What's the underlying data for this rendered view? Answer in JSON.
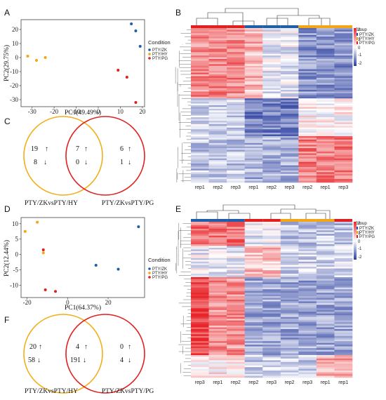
{
  "panels": {
    "A": "A",
    "B": "B",
    "C": "C",
    "D": "D",
    "E": "E",
    "F": "F"
  },
  "pca_legend_title": "Condition",
  "groups": [
    "PTY/ZK",
    "PTY/HY",
    "PTY/PG"
  ],
  "group_colors": {
    "PTY/ZK": "#1f5fa8",
    "PTY/HY": "#f2a515",
    "PTY/PG": "#e0201e"
  },
  "heatmap_legend_title": "Group",
  "heatmap_scale": {
    "ticks": [
      "2",
      "1",
      "0",
      "-1",
      "-2"
    ],
    "colors": [
      "#2b3fa0",
      "#ffffff",
      "#e8262a"
    ]
  },
  "chart_data": [
    {
      "id": "A",
      "type": "scatter",
      "xlabel": "PC1(49.49%)",
      "ylabel": "PC2(29.75%)",
      "xlim": [
        -35,
        21
      ],
      "ylim": [
        -35,
        27
      ],
      "xticks": [
        -30,
        -20,
        -10,
        0,
        10,
        20
      ],
      "yticks": [
        20,
        10,
        0,
        -10,
        -20,
        -30
      ],
      "series": [
        {
          "name": "PTY/ZK",
          "x": [
            15,
            17,
            19
          ],
          "y": [
            24,
            19,
            8
          ]
        },
        {
          "name": "PTY/HY",
          "x": [
            -32,
            -28,
            -24
          ],
          "y": [
            1,
            -2,
            0
          ]
        },
        {
          "name": "PTY/PG",
          "x": [
            9,
            13,
            17
          ],
          "y": [
            -9,
            -14,
            -32
          ]
        }
      ]
    },
    {
      "id": "D",
      "type": "scatter",
      "xlabel": "PC1(64.37%)",
      "ylabel": "PC2(12.44%)",
      "xlim": [
        -23,
        38
      ],
      "ylim": [
        -14,
        12
      ],
      "xticks": [
        -20,
        0,
        20
      ],
      "yticks": [
        10,
        5,
        0,
        -5,
        -10
      ],
      "series": [
        {
          "name": "PTY/ZK",
          "x": [
            14,
            25,
            35
          ],
          "y": [
            -3.5,
            -4.8,
            9
          ]
        },
        {
          "name": "PTY/HY",
          "x": [
            -21,
            -15,
            -12
          ],
          "y": [
            7.5,
            10.5,
            0.5
          ]
        },
        {
          "name": "PTY/PG",
          "x": [
            -12,
            -11,
            -6
          ],
          "y": [
            1.5,
            -11.5,
            -12
          ]
        }
      ]
    },
    {
      "id": "B",
      "type": "heatmap",
      "columns": [
        "rep1",
        "rep2",
        "rep3",
        "rep1",
        "rep2",
        "rep3",
        "rep2",
        "rep1",
        "rep3"
      ],
      "column_groups": [
        "PTY/PG",
        "PTY/PG",
        "PTY/PG",
        "PTY/ZK",
        "PTY/ZK",
        "PTY/ZK",
        "PTY/HY",
        "PTY/HY",
        "PTY/HY"
      ]
    },
    {
      "id": "E",
      "type": "heatmap",
      "columns": [
        "rep3",
        "rep1",
        "rep2",
        "rep2",
        "rep3",
        "rep2",
        "rep3",
        "rep1",
        "rep1"
      ],
      "column_groups": [
        "PTY/ZK",
        "PTY/ZK",
        "PTY/ZK",
        "PTY/PG",
        "PTY/PG",
        "PTY/HY",
        "PTY/HY",
        "PTY/HY",
        "PTY/PG"
      ]
    }
  ],
  "venn_C": {
    "left_label": "PTY/ZKvsPTY/HY",
    "right_label": "PTY/ZKvsPTY/PG",
    "left_up": "19",
    "left_down": "8",
    "mid_up": "7",
    "mid_down": "0",
    "right_up": "6",
    "right_down": "1"
  },
  "venn_F": {
    "left_label": "PTY/ZKvsPTY/HY",
    "right_label": "PTY/ZKvsPTY/PG",
    "left_up": "20",
    "left_down": "58",
    "mid_up": "4",
    "mid_down": "191",
    "right_up": "0",
    "right_down": "4"
  }
}
